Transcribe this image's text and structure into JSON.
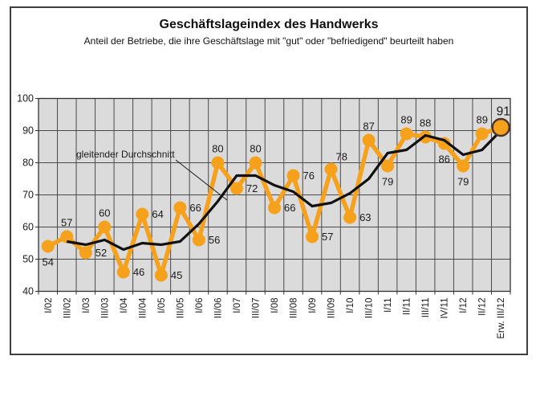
{
  "header": {
    "title": "Geschäftslageindex des Handwerks",
    "subtitle": "Anteil der Betriebe, die ihre Geschäftslage mit \"gut\" oder \"befriedigend\" beurteilt haben"
  },
  "chart_data": {
    "type": "line",
    "title": "Geschäftslageindex des Handwerks",
    "subtitle": "Anteil der Betriebe, die ihre Geschäftslage mit \"gut\" oder \"befriedigend\" beurteilt haben",
    "xlabel": "",
    "ylabel": "",
    "categories": [
      "I/02",
      "III/02",
      "I/03",
      "III/03",
      "I/04",
      "III/04",
      "I/05",
      "III/05",
      "I/06",
      "III/06",
      "I/07",
      "III/07",
      "I/08",
      "III/08",
      "I/09",
      "III/09",
      "I/10",
      "III/10",
      "I/11",
      "II/11",
      "III/11",
      "IV/11",
      "I/12",
      "II/12",
      "Erw. III/12"
    ],
    "series": [
      {
        "name": "Geschäftslageindex",
        "color": "#F6A11C",
        "marker": "circle",
        "values": [
          54,
          57,
          52,
          60,
          46,
          64,
          45,
          66,
          56,
          80,
          72,
          80,
          66,
          76,
          57,
          78,
          63,
          87,
          79,
          89,
          88,
          86,
          79,
          89,
          91
        ],
        "label_positions": [
          "below",
          "above",
          "right",
          "above",
          "right",
          "right",
          "right",
          "right",
          "right",
          "above",
          "right",
          "above",
          "right",
          "right",
          "right",
          "above-right",
          "right",
          "above",
          "below",
          "above",
          "above",
          "below",
          "below",
          "above",
          "above"
        ]
      },
      {
        "name": "gleitender Durchschnitt",
        "color": "#111111",
        "marker": "none",
        "values": [
          null,
          55.5,
          54.5,
          56,
          53,
          55,
          54.5,
          55.5,
          61,
          68,
          76,
          76,
          73,
          71,
          66.5,
          67.5,
          70.5,
          75,
          83,
          84,
          88.5,
          87,
          82.5,
          84,
          90
        ]
      }
    ],
    "ylim": [
      40,
      100
    ],
    "yticks": [
      40,
      50,
      60,
      70,
      80,
      90,
      100
    ],
    "grid": {
      "horizontal": true,
      "vertical": true,
      "vertical_at": "category-boundaries"
    },
    "plot_bg": "#DBDBDB",
    "gridline_color": "#4a4a4a",
    "border_color": "#333333",
    "legend_position": "none",
    "annotation": {
      "text": "gleitender Durchschnitt"
    },
    "last_point_highlight": {
      "enabled": true,
      "ring_color": "#453430",
      "label": "91"
    }
  }
}
